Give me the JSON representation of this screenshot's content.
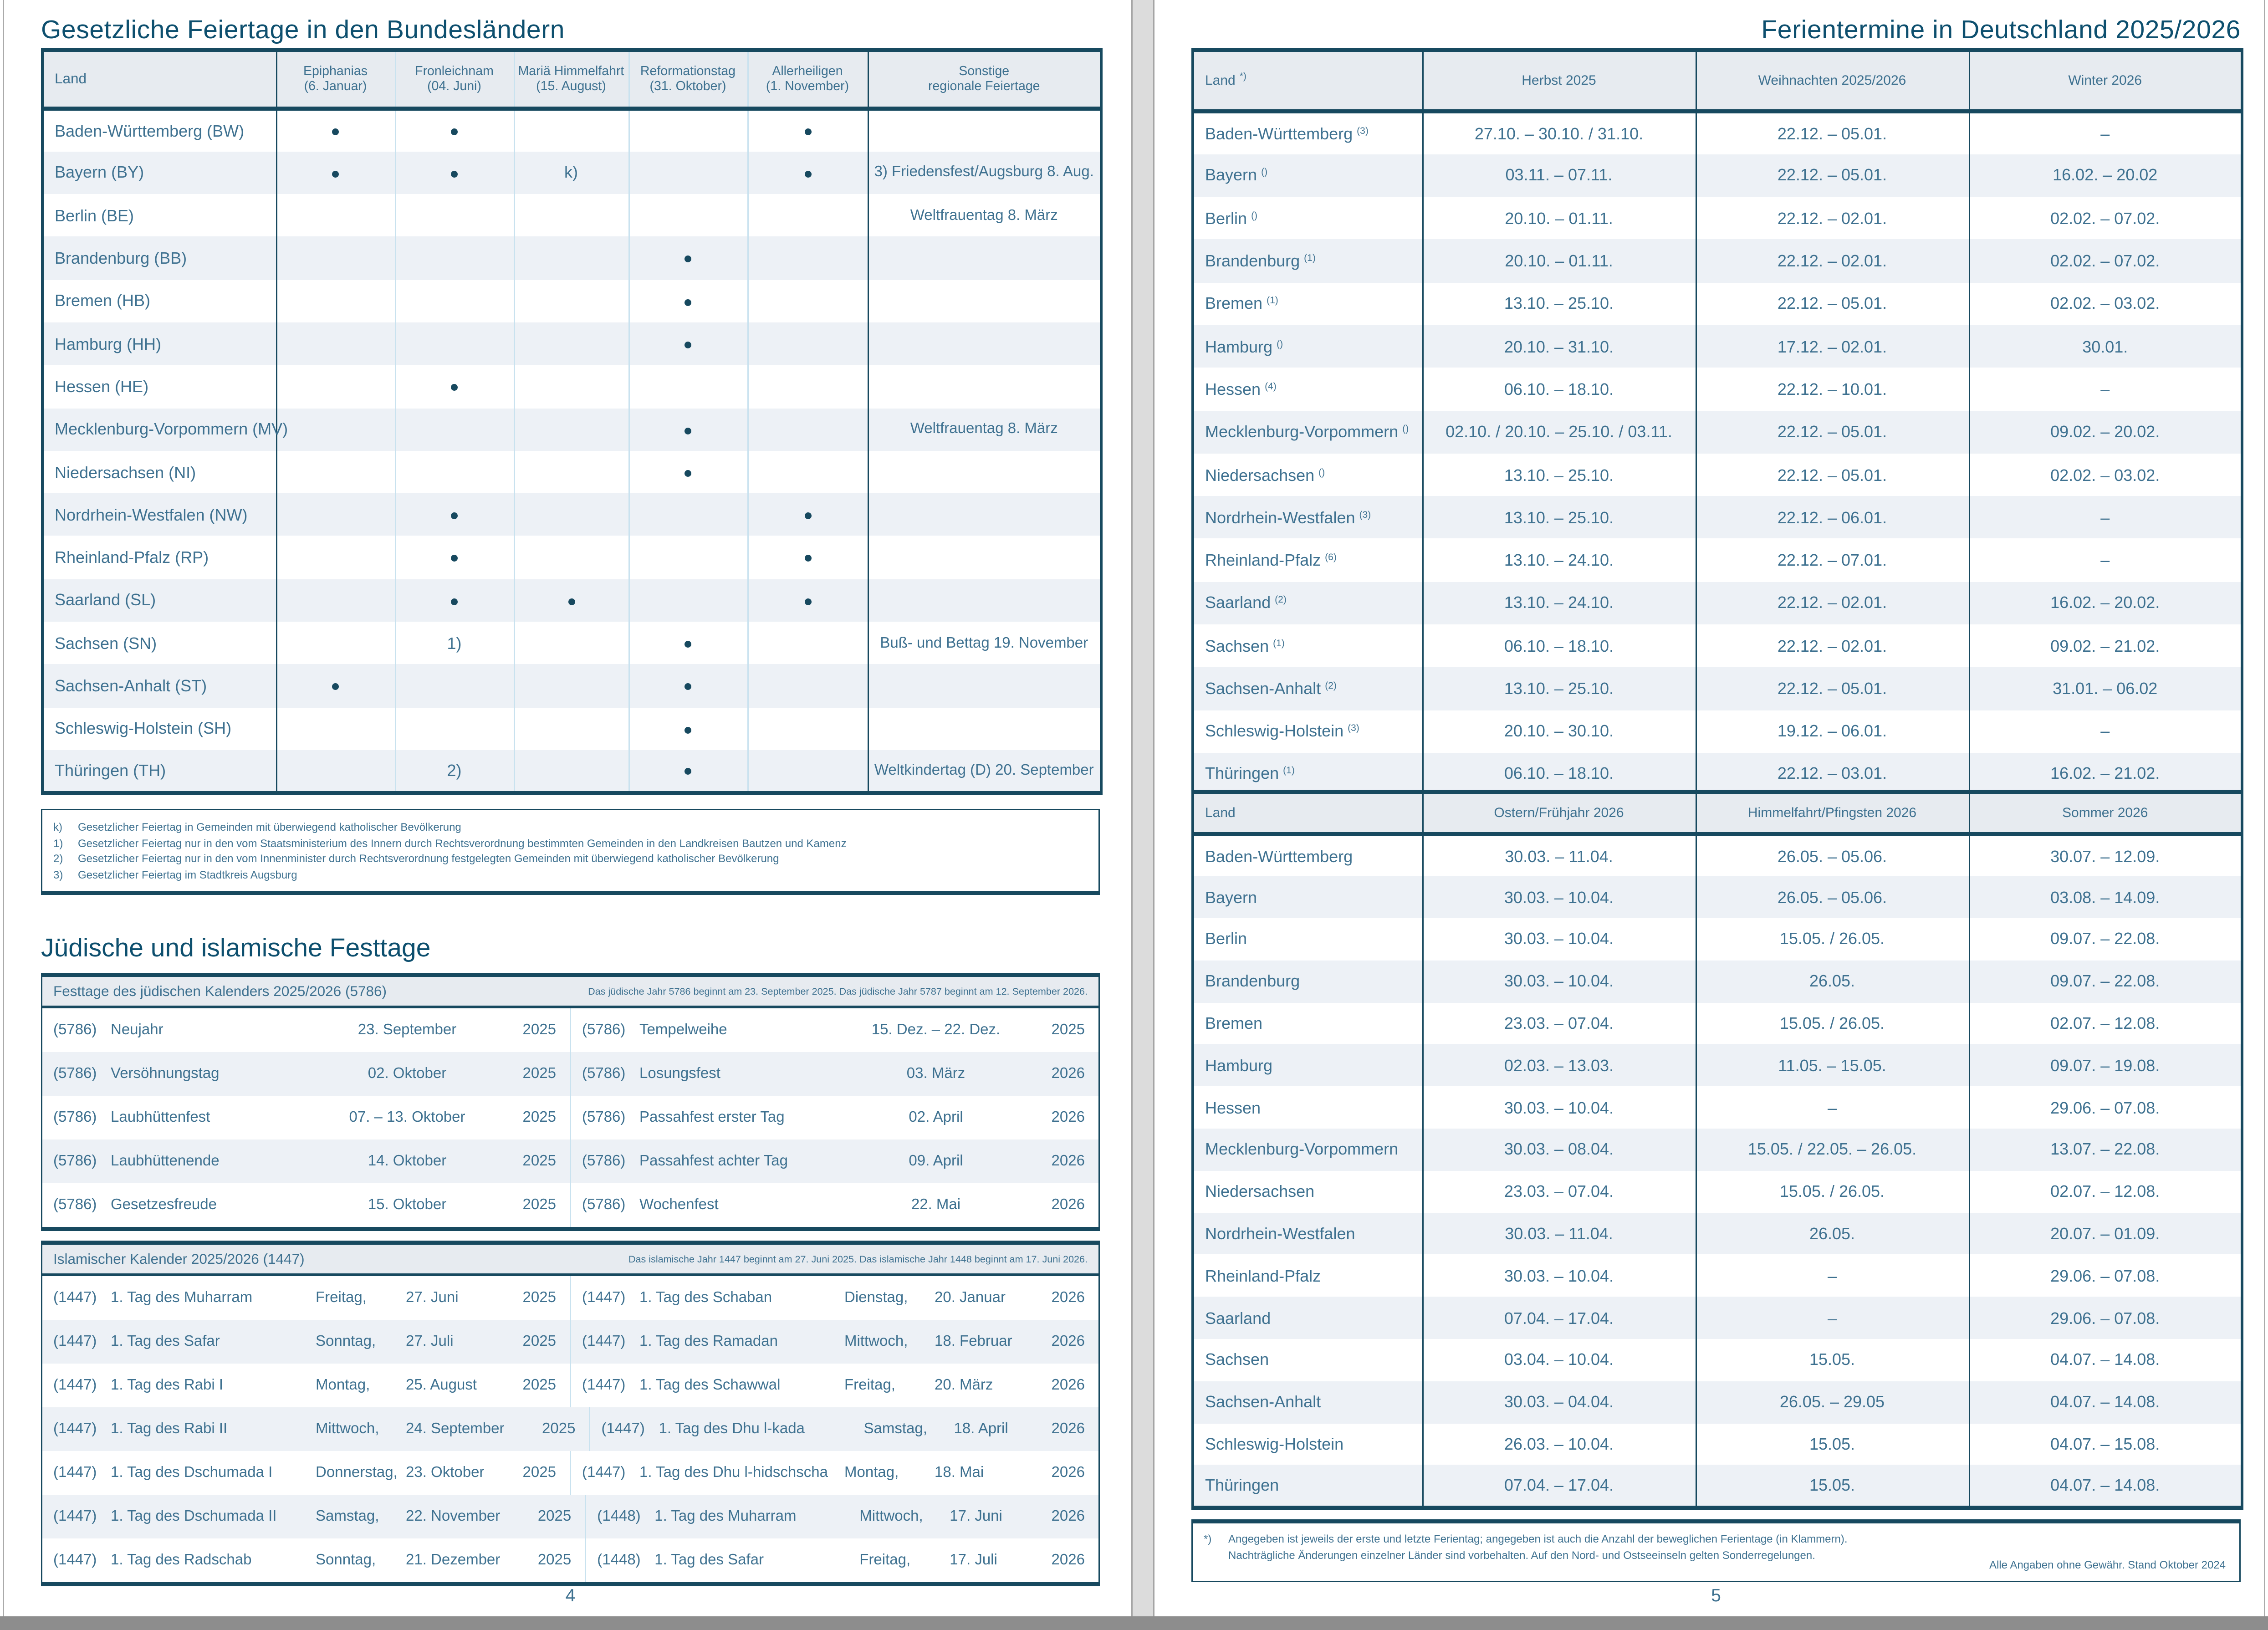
{
  "colors": {
    "navy": "#17495f",
    "text_blue": "#3e7190",
    "title_blue": "#0d4f6e",
    "header_fill": "#e7ebf0",
    "row_alt": "#edf1f6",
    "pale_line": "#c9e2ef",
    "bottom_band": "#8d8d8d"
  },
  "left_page": {
    "title": "Gesetzliche Feiertage in den Bundesländern",
    "holiday_table": {
      "columns": [
        {
          "label": "Land",
          "sub": ""
        },
        {
          "label": "Epiphanias",
          "sub": "(6. Januar)"
        },
        {
          "label": "Fronleichnam",
          "sub": "(04. Juni)"
        },
        {
          "label": "Mariä Himmelfahrt",
          "sub": "(15. August)"
        },
        {
          "label": "Reformationstag",
          "sub": "(31. Oktober)"
        },
        {
          "label": "Allerheiligen",
          "sub": "(1. November)"
        },
        {
          "label": "Sonstige",
          "sub": "regionale Feiertage"
        }
      ],
      "rows": [
        {
          "land": "Baden-Württemberg (BW)",
          "cells": [
            "dot",
            "dot",
            "",
            "",
            "dot"
          ],
          "sonstige": ""
        },
        {
          "land": "Bayern (BY)",
          "cells": [
            "dot",
            "dot",
            "k)",
            "",
            "dot"
          ],
          "sonstige": "3) Friedensfest/Augsburg 8. Aug."
        },
        {
          "land": "Berlin (BE)",
          "cells": [
            "",
            "",
            "",
            "",
            ""
          ],
          "sonstige": "Weltfrauentag 8. März"
        },
        {
          "land": "Brandenburg (BB)",
          "cells": [
            "",
            "",
            "",
            "dot",
            ""
          ],
          "sonstige": ""
        },
        {
          "land": "Bremen (HB)",
          "cells": [
            "",
            "",
            "",
            "dot",
            ""
          ],
          "sonstige": ""
        },
        {
          "land": "Hamburg (HH)",
          "cells": [
            "",
            "",
            "",
            "dot",
            ""
          ],
          "sonstige": ""
        },
        {
          "land": "Hessen (HE)",
          "cells": [
            "",
            "dot",
            "",
            "",
            ""
          ],
          "sonstige": ""
        },
        {
          "land": "Mecklenburg-Vorpommern (MV)",
          "cells": [
            "",
            "",
            "",
            "dot",
            ""
          ],
          "sonstige": "Weltfrauentag 8. März"
        },
        {
          "land": "Niedersachsen (NI)",
          "cells": [
            "",
            "",
            "",
            "dot",
            ""
          ],
          "sonstige": ""
        },
        {
          "land": "Nordrhein-Westfalen (NW)",
          "cells": [
            "",
            "dot",
            "",
            "",
            "dot"
          ],
          "sonstige": ""
        },
        {
          "land": "Rheinland-Pfalz (RP)",
          "cells": [
            "",
            "dot",
            "",
            "",
            "dot"
          ],
          "sonstige": ""
        },
        {
          "land": "Saarland (SL)",
          "cells": [
            "",
            "dot",
            "dot",
            "",
            "dot"
          ],
          "sonstige": ""
        },
        {
          "land": "Sachsen (SN)",
          "cells": [
            "",
            "1)",
            "",
            "dot",
            ""
          ],
          "sonstige": "Buß- und Bettag 19. November"
        },
        {
          "land": "Sachsen-Anhalt (ST)",
          "cells": [
            "dot",
            "",
            "",
            "dot",
            ""
          ],
          "sonstige": ""
        },
        {
          "land": "Schleswig-Holstein (SH)",
          "cells": [
            "",
            "",
            "",
            "dot",
            ""
          ],
          "sonstige": ""
        },
        {
          "land": "Thüringen (TH)",
          "cells": [
            "",
            "2)",
            "",
            "dot",
            ""
          ],
          "sonstige": "Weltkindertag (D) 20. September"
        }
      ],
      "footnotes": [
        {
          "key": "k)",
          "text": "Gesetzlicher Feiertag in Gemeinden mit überwiegend katholischer Bevölkerung"
        },
        {
          "key": "1)",
          "text": "Gesetzlicher Feiertag nur in den vom Staatsministerium des Innern durch Rechtsverordnung bestimmten Gemeinden in den Landkreisen Bautzen und Kamenz"
        },
        {
          "key": "2)",
          "text": "Gesetzlicher Feiertag nur in den vom Innenminister durch Rechtsverordnung festgelegten Gemeinden mit überwiegend katholischer Bevölkerung"
        },
        {
          "key": "3)",
          "text": "Gesetzlicher Feiertag im Stadtkreis Augsburg"
        }
      ]
    },
    "festtage_title": "Jüdische und islamische Festtage",
    "jewish": {
      "header": "Festtage des jüdischen Kalenders 2025/2026 (5786)",
      "note": "Das jüdische Jahr 5786 beginnt am 23. September 2025. Das jüdische Jahr 5787 beginnt am 12. September 2026.",
      "left": [
        [
          "(5786)",
          "Neujahr",
          "23. September",
          "2025"
        ],
        [
          "(5786)",
          "Versöhnungstag",
          "02. Oktober",
          "2025"
        ],
        [
          "(5786)",
          "Laubhüttenfest",
          "07. – 13. Oktober",
          "2025"
        ],
        [
          "(5786)",
          "Laubhüttenende",
          "14. Oktober",
          "2025"
        ],
        [
          "(5786)",
          "Gesetzesfreude",
          "15. Oktober",
          "2025"
        ]
      ],
      "right": [
        [
          "(5786)",
          "Tempelweihe",
          "15. Dez. – 22. Dez.",
          "2025"
        ],
        [
          "(5786)",
          "Losungsfest",
          "03. März",
          "2026"
        ],
        [
          "(5786)",
          "Passahfest erster Tag",
          "02. April",
          "2026"
        ],
        [
          "(5786)",
          "Passahfest achter Tag",
          "09. April",
          "2026"
        ],
        [
          "(5786)",
          "Wochenfest",
          "22. Mai",
          "2026"
        ]
      ]
    },
    "islamic": {
      "header": "Islamischer Kalender 2025/2026 (1447)",
      "note": "Das islamische Jahr 1447 beginnt am 27. Juni 2025. Das islamische Jahr 1448 beginnt am 17. Juni 2026.",
      "left": [
        [
          "(1447)",
          "1. Tag des Muharram",
          "Freitag,",
          "27. Juni",
          "2025"
        ],
        [
          "(1447)",
          "1. Tag des Safar",
          "Sonntag,",
          "27. Juli",
          "2025"
        ],
        [
          "(1447)",
          "1. Tag des Rabi I",
          "Montag,",
          "25. August",
          "2025"
        ],
        [
          "(1447)",
          "1. Tag des Rabi II",
          "Mittwoch,",
          "24. September",
          "2025"
        ],
        [
          "(1447)",
          "1. Tag des Dschumada I",
          "Donnerstag,",
          "23. Oktober",
          "2025"
        ],
        [
          "(1447)",
          "1. Tag des Dschumada II",
          "Samstag,",
          "22. November",
          "2025"
        ],
        [
          "(1447)",
          "1. Tag des Radschab",
          "Sonntag,",
          "21. Dezember",
          "2025"
        ]
      ],
      "right": [
        [
          "(1447)",
          "1. Tag des Schaban",
          "Dienstag,",
          "20. Januar",
          "2026"
        ],
        [
          "(1447)",
          "1. Tag des Ramadan",
          "Mittwoch,",
          "18. Februar",
          "2026"
        ],
        [
          "(1447)",
          "1. Tag des Schawwal",
          "Freitag,",
          "20. März",
          "2026"
        ],
        [
          "(1447)",
          "1. Tag des Dhu l-kada",
          "Samstag,",
          "18. April",
          "2026"
        ],
        [
          "(1447)",
          "1. Tag des Dhu l-hidschscha",
          "Montag,",
          "18. Mai",
          "2026"
        ],
        [
          "(1448)",
          "1. Tag des Muharram",
          "Mittwoch,",
          "17. Juni",
          "2026"
        ],
        [
          "(1448)",
          "1. Tag des Safar",
          "Freitag,",
          "17. Juli",
          "2026"
        ]
      ]
    },
    "page_number": "4"
  },
  "right_page": {
    "title": "Ferientermine in Deutschland 2025/2026",
    "table1": {
      "land_label": "Land",
      "land_sup": "*)",
      "columns": [
        "Herbst 2025",
        "Weihnachten 2025/2026",
        "Winter 2026"
      ],
      "rows": [
        {
          "land": "Baden-Württemberg",
          "sup": "(3)",
          "cells": [
            "27.10. – 30.10. / 31.10.",
            "22.12. – 05.01.",
            "–"
          ]
        },
        {
          "land": "Bayern",
          "sup": "()",
          "cells": [
            "03.11. – 07.11.",
            "22.12. – 05.01.",
            "16.02. – 20.02"
          ]
        },
        {
          "land": "Berlin",
          "sup": "()",
          "cells": [
            "20.10. – 01.11.",
            "22.12. – 02.01.",
            "02.02. – 07.02."
          ]
        },
        {
          "land": "Brandenburg",
          "sup": "(1)",
          "cells": [
            "20.10. – 01.11.",
            "22.12. – 02.01.",
            "02.02. – 07.02."
          ]
        },
        {
          "land": "Bremen",
          "sup": "(1)",
          "cells": [
            "13.10. – 25.10.",
            "22.12. – 05.01.",
            "02.02. – 03.02."
          ]
        },
        {
          "land": "Hamburg",
          "sup": "()",
          "cells": [
            "20.10. – 31.10.",
            "17.12. – 02.01.",
            "30.01."
          ]
        },
        {
          "land": "Hessen",
          "sup": "(4)",
          "cells": [
            "06.10. – 18.10.",
            "22.12. – 10.01.",
            "–"
          ]
        },
        {
          "land": "Mecklenburg-Vorpommern",
          "sup": "()",
          "cells": [
            "02.10. / 20.10. – 25.10. / 03.11.",
            "22.12. – 05.01.",
            "09.02. – 20.02."
          ]
        },
        {
          "land": "Niedersachsen",
          "sup": "()",
          "cells": [
            "13.10. – 25.10.",
            "22.12. – 05.01.",
            "02.02. – 03.02."
          ]
        },
        {
          "land": "Nordrhein-Westfalen",
          "sup": "(3)",
          "cells": [
            "13.10. – 25.10.",
            "22.12. – 06.01.",
            "–"
          ]
        },
        {
          "land": "Rheinland-Pfalz",
          "sup": "(6)",
          "cells": [
            "13.10. – 24.10.",
            "22.12. – 07.01.",
            "–"
          ]
        },
        {
          "land": "Saarland",
          "sup": "(2)",
          "cells": [
            "13.10. – 24.10.",
            "22.12. – 02.01.",
            "16.02. – 20.02."
          ]
        },
        {
          "land": "Sachsen",
          "sup": "(1)",
          "cells": [
            "06.10. – 18.10.",
            "22.12. – 02.01.",
            "09.02. – 21.02."
          ]
        },
        {
          "land": "Sachsen-Anhalt",
          "sup": "(2)",
          "cells": [
            "13.10. – 25.10.",
            "22.12. – 05.01.",
            "31.01. – 06.02"
          ]
        },
        {
          "land": "Schleswig-Holstein",
          "sup": "(3)",
          "cells": [
            "20.10. – 30.10.",
            "19.12. – 06.01.",
            "–"
          ]
        },
        {
          "land": "Thüringen",
          "sup": "(1)",
          "cells": [
            "06.10. – 18.10.",
            "22.12. – 03.01.",
            "16.02. – 21.02."
          ]
        }
      ]
    },
    "table2": {
      "land_label": "Land",
      "columns": [
        "Ostern/Frühjahr 2026",
        "Himmelfahrt/Pfingsten 2026",
        "Sommer 2026"
      ],
      "rows": [
        {
          "land": "Baden-Württemberg",
          "cells": [
            "30.03. – 11.04.",
            "26.05. – 05.06.",
            "30.07. – 12.09."
          ]
        },
        {
          "land": "Bayern",
          "cells": [
            "30.03. – 10.04.",
            "26.05. – 05.06.",
            "03.08. – 14.09."
          ]
        },
        {
          "land": "Berlin",
          "cells": [
            "30.03. – 10.04.",
            "15.05. / 26.05.",
            "09.07. – 22.08."
          ]
        },
        {
          "land": "Brandenburg",
          "cells": [
            "30.03. – 10.04.",
            "26.05.",
            "09.07. – 22.08."
          ]
        },
        {
          "land": "Bremen",
          "cells": [
            "23.03. – 07.04.",
            "15.05. / 26.05.",
            "02.07. – 12.08."
          ]
        },
        {
          "land": "Hamburg",
          "cells": [
            "02.03. – 13.03.",
            "11.05. – 15.05.",
            "09.07. – 19.08."
          ]
        },
        {
          "land": "Hessen",
          "cells": [
            "30.03. – 10.04.",
            "–",
            "29.06. – 07.08."
          ]
        },
        {
          "land": "Mecklenburg-Vorpommern",
          "cells": [
            "30.03. – 08.04.",
            "15.05. / 22.05. – 26.05.",
            "13.07. – 22.08."
          ]
        },
        {
          "land": "Niedersachsen",
          "cells": [
            "23.03. – 07.04.",
            "15.05. / 26.05.",
            "02.07. – 12.08."
          ]
        },
        {
          "land": "Nordrhein-Westfalen",
          "cells": [
            "30.03. – 11.04.",
            "26.05.",
            "20.07. – 01.09."
          ]
        },
        {
          "land": "Rheinland-Pfalz",
          "cells": [
            "30.03. – 10.04.",
            "–",
            "29.06. – 07.08."
          ]
        },
        {
          "land": "Saarland",
          "cells": [
            "07.04. – 17.04.",
            "–",
            "29.06. – 07.08."
          ]
        },
        {
          "land": "Sachsen",
          "cells": [
            "03.04. – 10.04.",
            "15.05.",
            "04.07. – 14.08."
          ]
        },
        {
          "land": "Sachsen-Anhalt",
          "cells": [
            "30.03. – 04.04.",
            "26.05. – 29.05",
            "04.07. – 14.08."
          ]
        },
        {
          "land": "Schleswig-Holstein",
          "cells": [
            "26.03. – 10.04.",
            "15.05.",
            "04.07. – 15.08."
          ]
        },
        {
          "land": "Thüringen",
          "cells": [
            "07.04. – 17.04.",
            "15.05.",
            "04.07. – 14.08."
          ]
        }
      ]
    },
    "footnote": {
      "key": "*)",
      "lines": [
        "Angegeben ist jeweils der erste und letzte Ferientag; angegeben ist auch die Anzahl der beweglichen Ferientage (in Klammern).",
        "Nachträgliche Änderungen einzelner Länder sind vorbehalten. Auf den Nord- und Ostseeinseln gelten Sonderregelungen."
      ],
      "right_note": "Alle Angaben ohne Gewähr. Stand Oktober 2024"
    },
    "page_number": "5"
  }
}
